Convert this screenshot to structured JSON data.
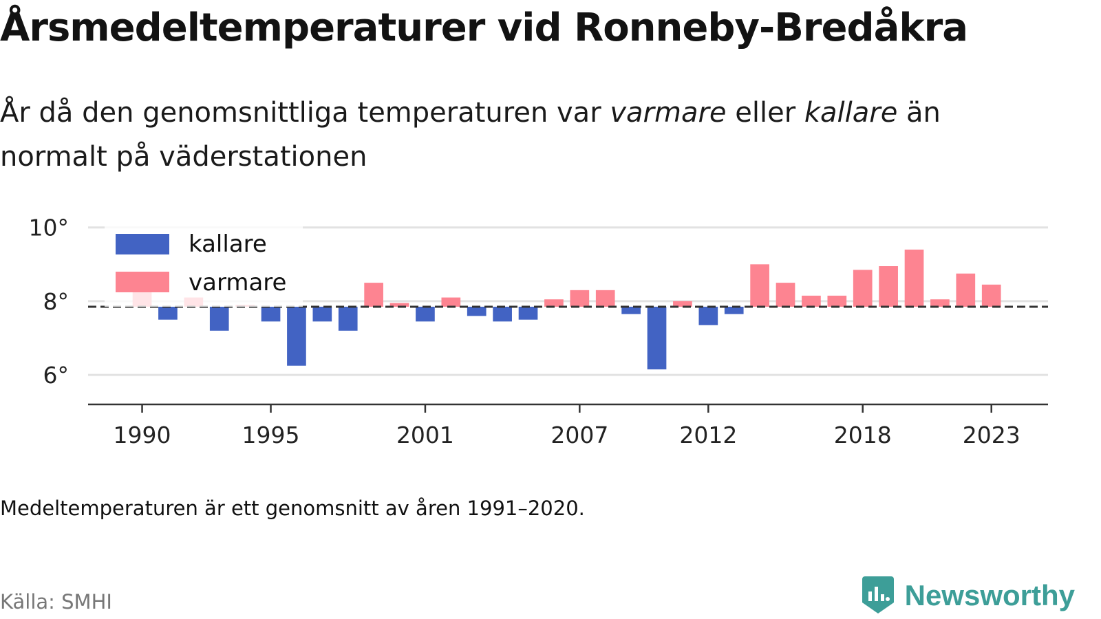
{
  "header": {
    "title": "Årsmedeltemperaturer vid Ronneby-Bredåkra",
    "subtitle_part1": "År då den genomsnittliga temperaturen var ",
    "subtitle_em1": "varmare",
    "subtitle_part2": " eller ",
    "subtitle_em2": "kallare",
    "subtitle_part3": " än normalt på väderstationen"
  },
  "footer": {
    "note": "Medeltemperaturen är ett genomsnitt av åren 1991–2020.",
    "source": "Källa: SMHI",
    "brand": "Newsworthy"
  },
  "colors": {
    "colder": "#4263c3",
    "warmer": "#fd8491",
    "grid": "#e2e2e2",
    "axis": "#333333",
    "brand": "#3d9e98"
  },
  "chart_data": {
    "type": "bar",
    "baseline": 7.85,
    "ylim": [
      5.2,
      10.2
    ],
    "yticks": [
      {
        "value": 6,
        "label": "6°"
      },
      {
        "value": 8,
        "label": "8°"
      },
      {
        "value": 10,
        "label": "10°"
      }
    ],
    "xlim": [
      1987.9,
      2025.2
    ],
    "xticks": [
      1990,
      1995,
      2001,
      2007,
      2012,
      2018,
      2023
    ],
    "legend": {
      "position": "top-left",
      "items": [
        {
          "key": "colder",
          "label": "kallare"
        },
        {
          "key": "warmer",
          "label": "varmare"
        }
      ]
    },
    "series": [
      {
        "year": 1990,
        "value": 8.4
      },
      {
        "year": 1991,
        "value": 7.5
      },
      {
        "year": 1992,
        "value": 8.1
      },
      {
        "year": 1993,
        "value": 7.2
      },
      {
        "year": 1994,
        "value": 7.9
      },
      {
        "year": 1995,
        "value": 7.45
      },
      {
        "year": 1996,
        "value": 6.25
      },
      {
        "year": 1997,
        "value": 7.45
      },
      {
        "year": 1998,
        "value": 7.2
      },
      {
        "year": 1999,
        "value": 8.5
      },
      {
        "year": 2000,
        "value": 7.95
      },
      {
        "year": 2001,
        "value": 7.45
      },
      {
        "year": 2002,
        "value": 8.1
      },
      {
        "year": 2003,
        "value": 7.6
      },
      {
        "year": 2004,
        "value": 7.45
      },
      {
        "year": 2005,
        "value": 7.5
      },
      {
        "year": 2006,
        "value": 8.05
      },
      {
        "year": 2007,
        "value": 8.3
      },
      {
        "year": 2008,
        "value": 8.3
      },
      {
        "year": 2009,
        "value": 7.65
      },
      {
        "year": 2010,
        "value": 6.15
      },
      {
        "year": 2011,
        "value": 8.0
      },
      {
        "year": 2012,
        "value": 7.35
      },
      {
        "year": 2013,
        "value": 7.65
      },
      {
        "year": 2014,
        "value": 9.0
      },
      {
        "year": 2015,
        "value": 8.5
      },
      {
        "year": 2016,
        "value": 8.15
      },
      {
        "year": 2017,
        "value": 8.15
      },
      {
        "year": 2018,
        "value": 8.85
      },
      {
        "year": 2019,
        "value": 8.95
      },
      {
        "year": 2020,
        "value": 9.4
      },
      {
        "year": 2021,
        "value": 8.05
      },
      {
        "year": 2022,
        "value": 8.75
      },
      {
        "year": 2023,
        "value": 8.45
      }
    ]
  }
}
